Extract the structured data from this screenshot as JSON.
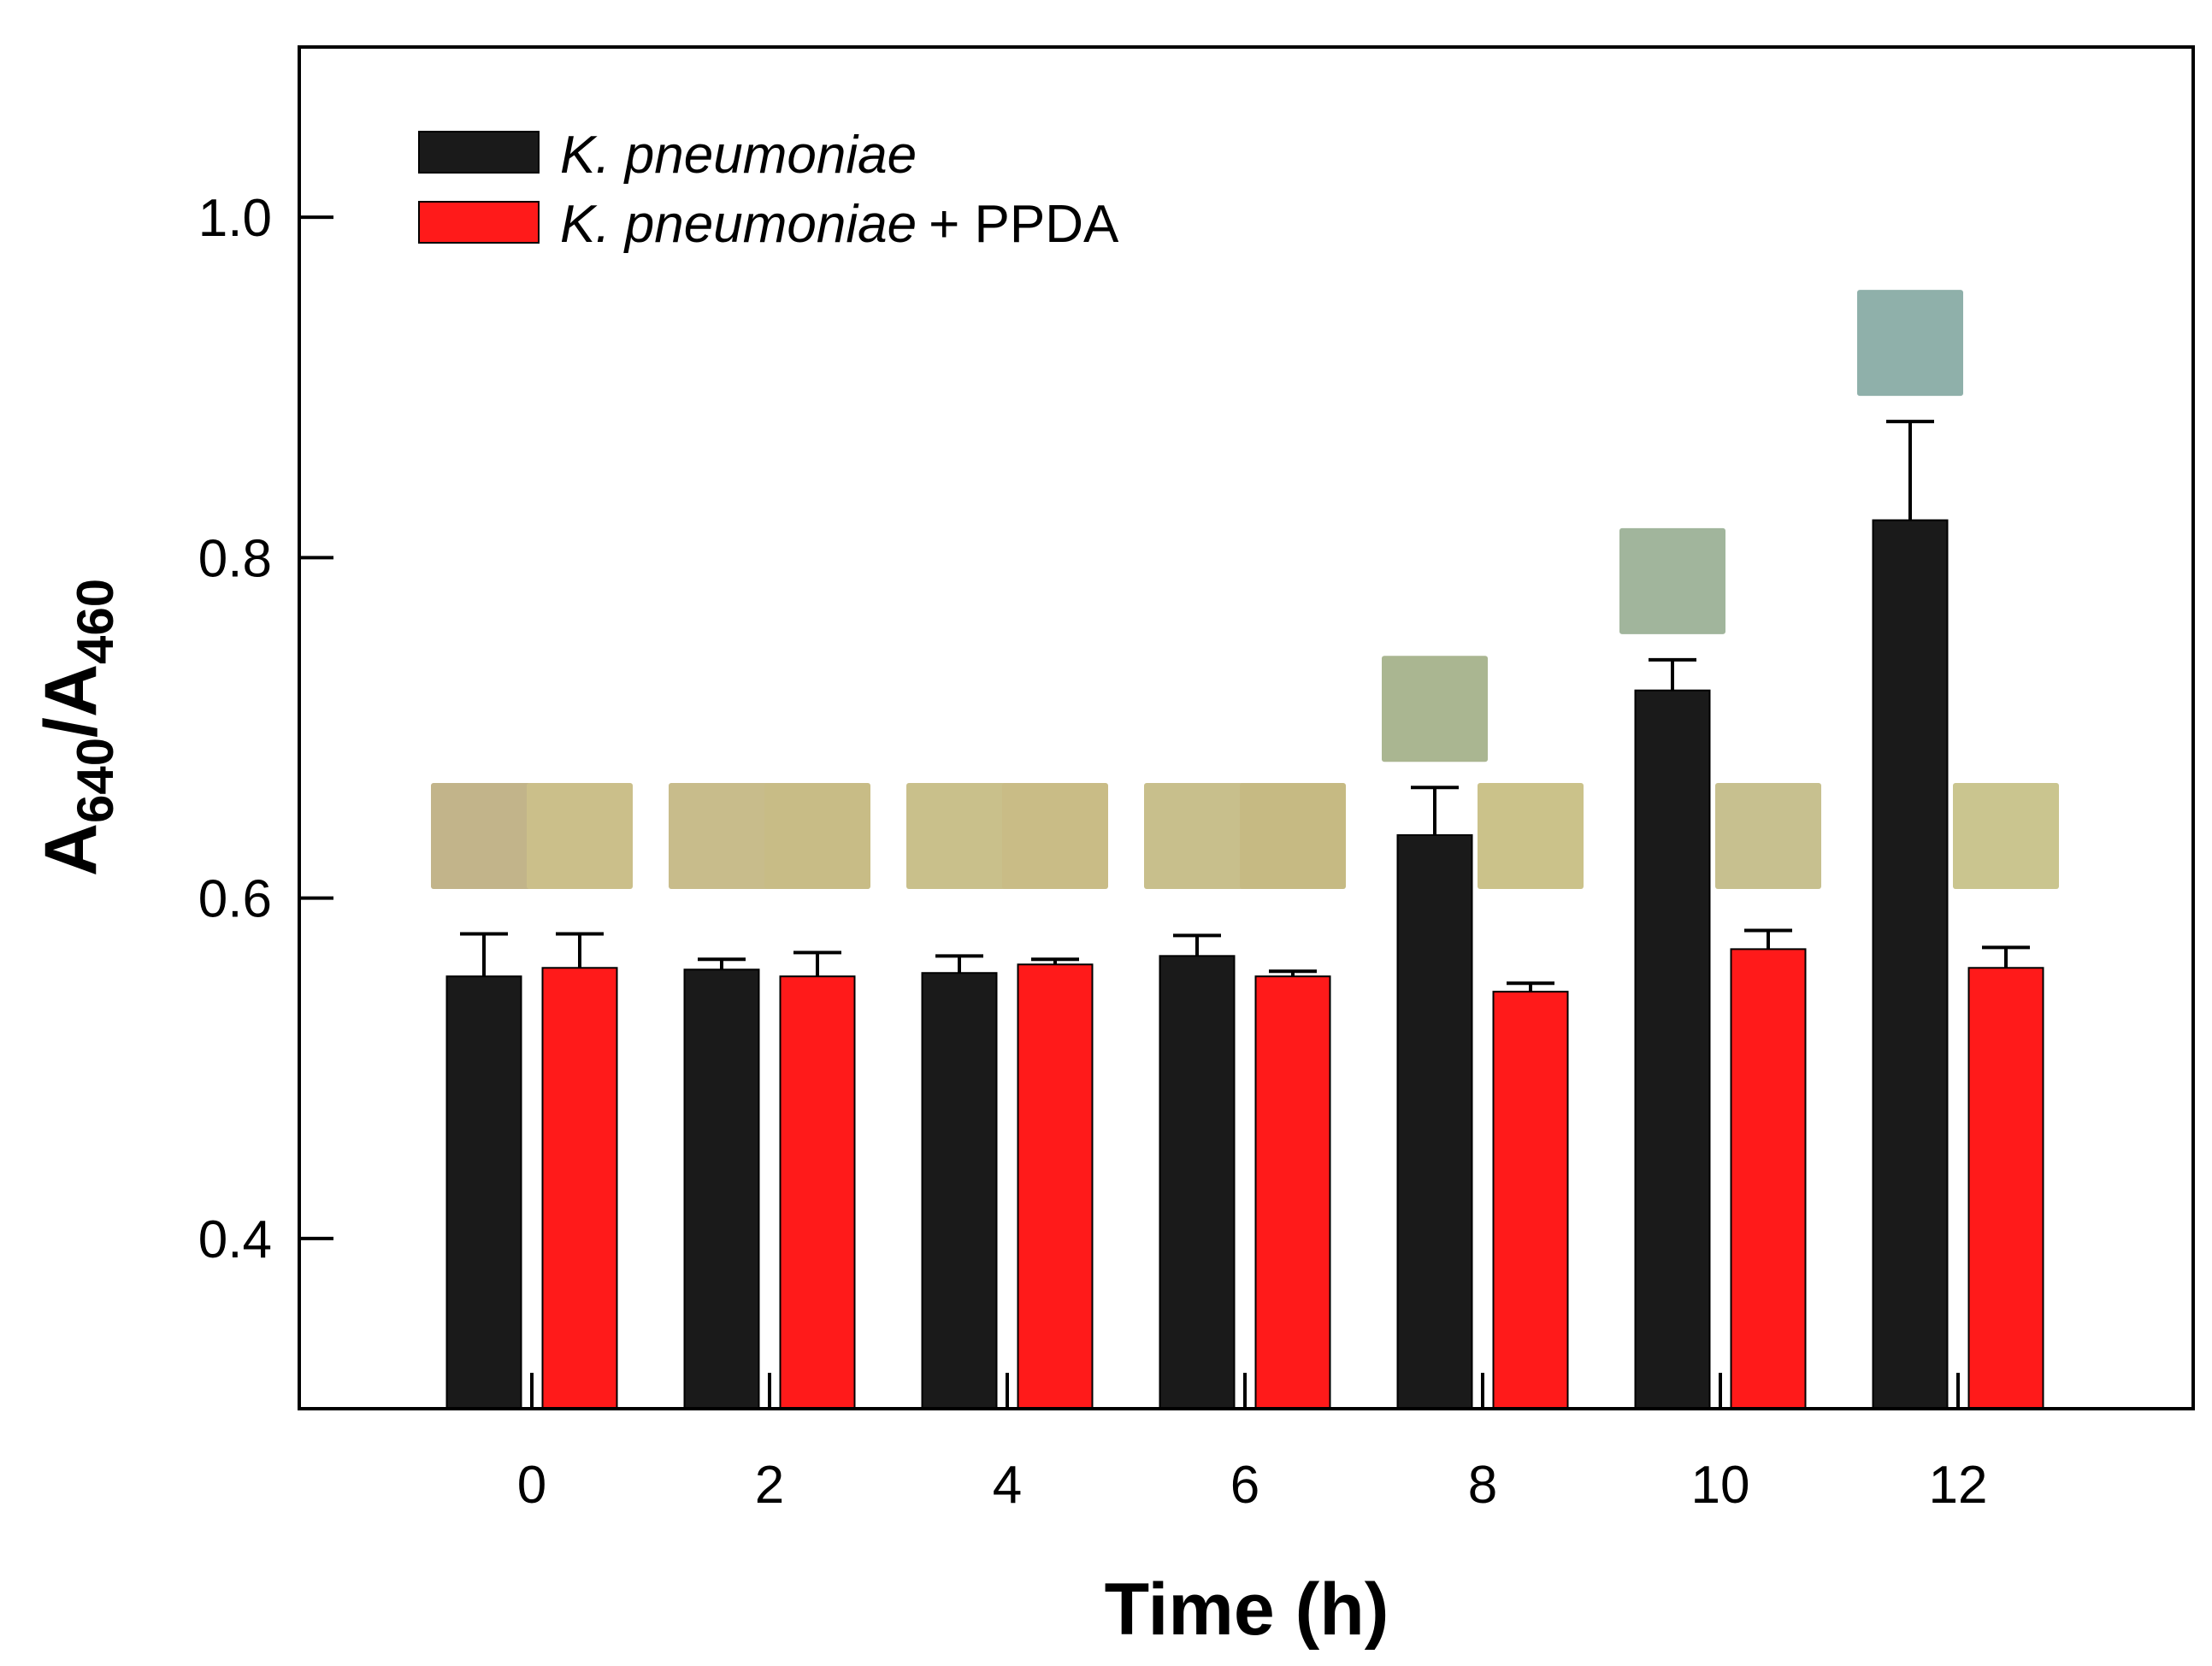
{
  "chart_data": {
    "type": "bar",
    "xlabel": "Time (h)",
    "ylabel": {
      "main": "A",
      "sub1": "640",
      "sep": "/A",
      "sub2": "460"
    },
    "categories": [
      "0",
      "2",
      "4",
      "6",
      "8",
      "10",
      "12"
    ],
    "ylim": [
      0.3,
      1.1
    ],
    "yticks": [
      0.4,
      0.6,
      0.8,
      1.0
    ],
    "ytick_labels": [
      "0.4",
      "0.6",
      "0.8",
      "1.0"
    ],
    "grid": false,
    "legend_position": "top-left",
    "series": [
      {
        "name": "K. pneumoniae",
        "name_italic": "K. pneumoniae",
        "name_suffix": "",
        "color": "#1a1a1a",
        "values": [
          0.554,
          0.558,
          0.556,
          0.566,
          0.637,
          0.722,
          0.822
        ],
        "errors": [
          0.025,
          0.006,
          0.01,
          0.012,
          0.028,
          0.018,
          0.058
        ]
      },
      {
        "name": "K. pneumoniae + PPDA",
        "name_italic": "K. pneumoniae",
        "name_suffix": "+ PPDA",
        "color": "#ff1a1a",
        "values": [
          0.559,
          0.554,
          0.561,
          0.554,
          0.545,
          0.57,
          0.559
        ],
        "errors": [
          0.02,
          0.014,
          0.003,
          0.003,
          0.005,
          0.011,
          0.012
        ]
      }
    ],
    "color_swatches": [
      {
        "category": "0",
        "series": 0,
        "color": "#c2b48a"
      },
      {
        "category": "0",
        "series": 1,
        "color": "#cbbf8a"
      },
      {
        "category": "2",
        "series": 0,
        "color": "#c8bc8b"
      },
      {
        "category": "2",
        "series": 1,
        "color": "#c8bc86"
      },
      {
        "category": "4",
        "series": 0,
        "color": "#c9c08b"
      },
      {
        "category": "4",
        "series": 1,
        "color": "#c9bc86"
      },
      {
        "category": "6",
        "series": 0,
        "color": "#c8bf8c"
      },
      {
        "category": "6",
        "series": 1,
        "color": "#c6ba83"
      },
      {
        "category": "8",
        "series": 0,
        "color": "#aab691"
      },
      {
        "category": "8",
        "series": 1,
        "color": "#cbc28a"
      },
      {
        "category": "10",
        "series": 0,
        "color": "#a1b59c"
      },
      {
        "category": "10",
        "series": 1,
        "color": "#c7c08f"
      },
      {
        "category": "12",
        "series": 0,
        "color": "#8fb0aa"
      },
      {
        "category": "12",
        "series": 1,
        "color": "#cac58f"
      }
    ]
  }
}
